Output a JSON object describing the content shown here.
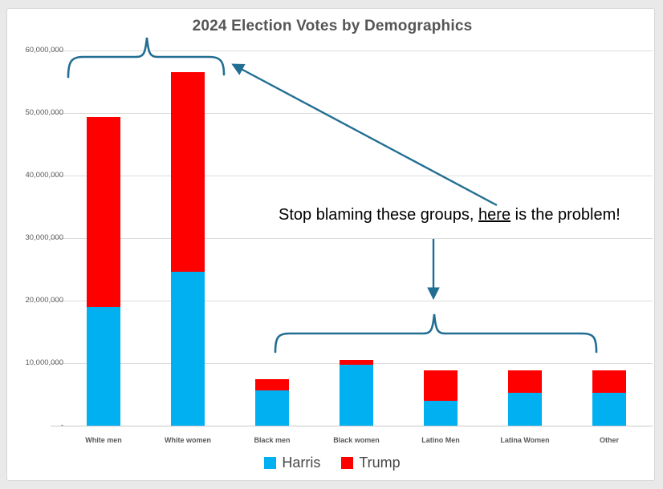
{
  "title": "2024 Election Votes by Demographics",
  "annotation": {
    "before": "Stop blaming these groups, ",
    "underlined": "here",
    "after": " is the problem!"
  },
  "colors": {
    "harris_blue": "#00B0F0",
    "trump_red": "#FF0000",
    "shape_teal": "#226E93",
    "title_gray": "#555555",
    "axis_gray": "#595959"
  },
  "chart_data": {
    "type": "bar",
    "stacked": true,
    "title": "2024 Election Votes by Demographics",
    "xlabel": "",
    "ylabel": "",
    "ylim": [
      0,
      60000000
    ],
    "ytick_interval": 10000000,
    "ytick_labels": [
      "-",
      "10,000,000",
      "20,000,000",
      "30,000,000",
      "40,000,000",
      "50,000,000",
      "60,000,000"
    ],
    "grid": true,
    "legend_position": "bottom",
    "categories": [
      "White men",
      "White women",
      "Black men",
      "Black women",
      "Latino Men",
      "Latina Women",
      "Other"
    ],
    "series": [
      {
        "name": "Harris",
        "color": "#00B0F0",
        "values": [
          19000000,
          24600000,
          5600000,
          9700000,
          4000000,
          5200000,
          5200000
        ]
      },
      {
        "name": "Trump",
        "color": "#FF0000",
        "values": [
          30300000,
          31900000,
          1800000,
          800000,
          4800000,
          3700000,
          3700000
        ]
      }
    ]
  }
}
